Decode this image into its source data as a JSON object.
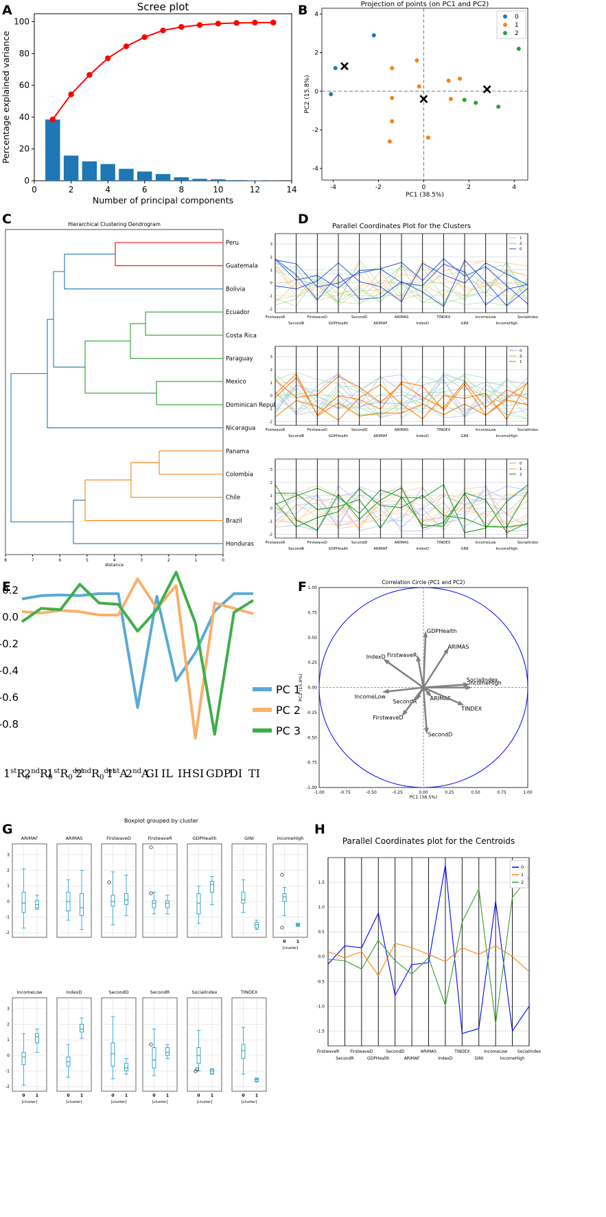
{
  "panel_labels": [
    "A",
    "B",
    "C",
    "D",
    "E",
    "F",
    "G",
    "H"
  ],
  "chart_data": [
    {
      "id": "A",
      "type": "bar+line",
      "title": "Scree plot",
      "xlabel": "Number of principal components",
      "ylabel": "Percentage explained variance",
      "x": [
        1,
        2,
        3,
        4,
        5,
        6,
        7,
        8,
        9,
        10,
        11,
        12,
        13
      ],
      "bar_values": [
        38.5,
        15.8,
        12.2,
        10.5,
        7.5,
        5.8,
        4.2,
        2.2,
        1.2,
        0.9,
        0.4,
        0.2,
        0.1
      ],
      "cumulative": [
        38.5,
        54.3,
        66.5,
        77.0,
        84.5,
        90.3,
        94.5,
        96.7,
        97.9,
        98.8,
        99.2,
        99.4,
        99.5
      ],
      "xticks": [
        "0",
        "2",
        "4",
        "6",
        "8",
        "10",
        "12",
        "14"
      ],
      "yticks": [
        "0",
        "20",
        "40",
        "60",
        "80",
        "100"
      ],
      "xlim": [
        0,
        14
      ],
      "ylim": [
        0,
        105
      ],
      "bar_color": "#1f77b4",
      "line_color": "#ff0000"
    },
    {
      "id": "B",
      "type": "scatter",
      "title": "Projection of points (on PC1 and PC2)",
      "xlabel": "PC1 (38.5%)",
      "ylabel": "PC2 (15.8%)",
      "xlim": [
        -4.5,
        4.6
      ],
      "ylim": [
        -4.6,
        4.3
      ],
      "xticks": [
        "-4",
        "-2",
        "0",
        "2",
        "4"
      ],
      "yticks": [
        "-4",
        "-2",
        "0",
        "2",
        "4"
      ],
      "legend": [
        "0",
        "1",
        "2"
      ],
      "series": [
        {
          "name": "0",
          "color": "#1f77b4",
          "points": [
            [
              -3.9,
              1.2
            ],
            [
              -2.2,
              2.9
            ],
            [
              -4.1,
              -0.15
            ]
          ]
        },
        {
          "name": "1",
          "color": "#ff7f0e",
          "points": [
            [
              -1.4,
              1.2
            ],
            [
              -0.3,
              1.6
            ],
            [
              -0.2,
              0.25
            ],
            [
              -1.4,
              -0.35
            ],
            [
              -1.4,
              -1.55
            ],
            [
              -1.5,
              -2.6
            ],
            [
              0.2,
              -2.4
            ],
            [
              1.1,
              0.55
            ],
            [
              1.2,
              -0.4
            ],
            [
              1.6,
              0.65
            ]
          ]
        },
        {
          "name": "2",
          "color": "#2ca02c",
          "points": [
            [
              1.8,
              -0.45
            ],
            [
              2.3,
              -0.6
            ],
            [
              3.3,
              -0.8
            ],
            [
              4.2,
              2.2
            ]
          ]
        }
      ],
      "centroids": [
        [
          -3.5,
          1.3
        ],
        [
          0.0,
          -0.4
        ],
        [
          2.8,
          0.1
        ]
      ]
    },
    {
      "id": "C",
      "type": "dendrogram",
      "title": "Hierarchical Clustering Dendrogram",
      "xlabel": "distance",
      "xticks": [
        "8",
        "7",
        "6",
        "5",
        "4",
        "3",
        "2",
        "1",
        "0"
      ],
      "leaves": [
        "Peru",
        "Guatemala",
        "Bolivia",
        "Ecuador",
        "Costa Rica",
        "Paraguay",
        "Mexico",
        "Dominican Repub",
        "Nicaragua",
        "Panama",
        "Colombia",
        "Chile",
        "Brazil",
        "Honduras"
      ],
      "merges": [
        {
          "a": 0,
          "b": 1,
          "h": 3.9,
          "color": "#ff0000"
        },
        {
          "a": 3,
          "b": 4,
          "h": 2.9,
          "color": "#2ca02c"
        },
        {
          "a": 6,
          "b": 7,
          "h": 2.5,
          "color": "#2ca02c"
        },
        {
          "a": 9,
          "b": 10,
          "h": 2.5,
          "color": "#ff7f0e"
        }
      ]
    },
    {
      "id": "D",
      "type": "parallel_coordinates",
      "title": "Parallel Coordinates Plot for the Clusters",
      "axes": [
        "FirstwaveR",
        "SecondR",
        "FirstwaveD",
        "GDPHealth",
        "SecondD",
        "ARIMAF",
        "ARIMAS",
        "IndexD",
        "TINDEX",
        "GINI",
        "IncomeLow",
        "IncomeHigh",
        "SocialIndex"
      ],
      "yticks": [
        "3",
        "2",
        "1",
        "0",
        "-1",
        "-2"
      ],
      "subplots": [
        {
          "legend": [
            "1",
            "2",
            "0"
          ],
          "highlight": "0",
          "highlight_color": "#4169e1"
        },
        {
          "legend": [
            "0",
            "2",
            "1"
          ],
          "highlight": "1",
          "highlight_color": "#ff7f0e"
        },
        {
          "legend": [
            "0",
            "1",
            "2"
          ],
          "highlight": "2",
          "highlight_color": "#2ca02c"
        }
      ]
    },
    {
      "id": "E",
      "type": "line",
      "categories": [
        "1stR0",
        "2ndR0",
        "1stR0det",
        "2ndR0det",
        "1stA",
        "2ndA",
        "GI",
        "IL",
        "IH",
        "SI",
        "GDP",
        "DI",
        "TI"
      ],
      "yticks": [
        "0.2",
        "0.0",
        "-0.2",
        "-0.4",
        "-0.6",
        "-0.8"
      ],
      "ylim": [
        -0.95,
        0.3
      ],
      "series": [
        {
          "name": "PC 1",
          "color": "#5aa9d6",
          "values": [
            0.13,
            0.155,
            0.16,
            0.155,
            0.17,
            0.17,
            -0.68,
            0.15,
            -0.48,
            -0.27,
            0.04,
            0.17,
            0.17
          ]
        },
        {
          "name": "PC 2",
          "color": "#f9b06b",
          "values": [
            0.035,
            0.025,
            0.045,
            0.035,
            0.01,
            0.01,
            0.28,
            0.06,
            0.23,
            -0.91,
            0.1,
            0.06,
            0.02
          ]
        },
        {
          "name": "PC 3",
          "color": "#3fae49",
          "values": [
            -0.04,
            0.06,
            0.05,
            0.24,
            0.1,
            0.09,
            -0.11,
            0.05,
            0.33,
            -0.05,
            -0.88,
            0.03,
            0.12
          ]
        }
      ],
      "tick_labels": [
        "1stR0",
        "2ndR0",
        "1stR0det",
        "2ndR0det",
        "1stA",
        "2ndA",
        "GI",
        "IL",
        "IH",
        "SI",
        "GDP",
        "DI",
        "TI"
      ]
    },
    {
      "id": "F",
      "type": "correlation_circle",
      "title": "Correlation Circle (PC1 and PC2)",
      "xlabel": "PC1 (38.5%)",
      "ylabel": "PC2 (15.8%)",
      "ticks": [
        "-1.00",
        "-0.75",
        "-0.50",
        "-0.25",
        "0.00",
        "0.25",
        "0.50",
        "0.75",
        "1.00"
      ],
      "vectors": [
        {
          "label": "GDPHealth",
          "x": 0.02,
          "y": 0.52
        },
        {
          "label": "ARIMAS",
          "x": 0.22,
          "y": 0.36
        },
        {
          "label": "FirstwaveR",
          "x": -0.05,
          "y": 0.28
        },
        {
          "label": "IndexD",
          "x": -0.35,
          "y": 0.26
        },
        {
          "label": "SocialIndex",
          "x": 0.4,
          "y": 0.03
        },
        {
          "label": "IncomeHigh",
          "x": 0.42,
          "y": 0.0
        },
        {
          "label": "IncomeLow",
          "x": -0.35,
          "y": -0.04
        },
        {
          "label": "ARIMAF",
          "x": 0.05,
          "y": -0.06
        },
        {
          "label": "SecondR",
          "x": -0.05,
          "y": -0.09
        },
        {
          "label": "TINDEX",
          "x": 0.35,
          "y": -0.16
        },
        {
          "label": "FirstwaveD",
          "x": -0.18,
          "y": -0.25
        },
        {
          "label": "SecondD",
          "x": 0.03,
          "y": -0.42
        }
      ]
    },
    {
      "id": "G",
      "type": "boxplot",
      "title": "Boxplot grouped by cluster",
      "xlabel": "[cluster]",
      "groups": [
        "0",
        "1"
      ],
      "yticks": [
        "3",
        "2",
        "1",
        "0",
        "-1",
        "-2"
      ],
      "panels": [
        {
          "name": "ARIMAF",
          "g0": {
            "min": -1.7,
            "q1": -0.7,
            "med": -0.1,
            "q3": 0.6,
            "max": 2.1
          },
          "g1": {
            "min": -0.5,
            "q1": -0.4,
            "med": -0.2,
            "q3": 0.05,
            "max": 0.4
          }
        },
        {
          "name": "ARIMAS",
          "g0": {
            "min": -1.2,
            "q1": -0.6,
            "med": 0.0,
            "q3": 0.6,
            "max": 1.4
          },
          "g1": {
            "min": -1.8,
            "q1": -0.9,
            "med": -0.4,
            "q3": 0.5,
            "max": 2.0
          }
        },
        {
          "name": "FirstwaveD",
          "g0": {
            "min": -1.5,
            "q1": -0.3,
            "med": 0.0,
            "q3": 0.4,
            "max": 1.9
          },
          "g1": {
            "min": -0.9,
            "q1": -0.2,
            "med": 0.1,
            "q3": 0.5,
            "max": 1.7
          }
        },
        {
          "name": "FirstwaveR",
          "g0": {
            "min": -0.8,
            "q1": -0.4,
            "med": -0.1,
            "q3": 0.05,
            "max": 0.6
          },
          "g1": {
            "min": -0.8,
            "q1": -0.4,
            "med": -0.1,
            "q3": 0.05,
            "max": 0.4
          }
        },
        {
          "name": "GDPHealth",
          "g0": {
            "min": -1.4,
            "q1": -0.8,
            "med": -0.1,
            "q3": 0.5,
            "max": 1.0
          },
          "g1": {
            "min": -0.2,
            "q1": 0.6,
            "med": 1.1,
            "q3": 1.3,
            "max": 1.6
          }
        },
        {
          "name": "GINI",
          "g0": {
            "min": -0.7,
            "q1": -0.1,
            "med": 0.1,
            "q3": 0.6,
            "max": 1.4
          },
          "g1": {
            "min": -1.8,
            "q1": -1.7,
            "med": -1.5,
            "q3": -1.35,
            "max": -1.2
          }
        },
        {
          "name": "IncomeHigh",
          "g0": {
            "min": -0.9,
            "q1": 0.0,
            "med": 0.3,
            "q3": 0.5,
            "max": 0.9
          },
          "g1": {
            "min": -1.6,
            "q1": -1.55,
            "med": -1.5,
            "q3": -1.45,
            "max": -1.4
          }
        },
        {
          "name": "IncomeLow",
          "g0": {
            "min": -1.9,
            "q1": -0.6,
            "med": -0.1,
            "q3": 0.2,
            "max": 1.4
          },
          "g1": {
            "min": 0.2,
            "q1": 0.8,
            "med": 1.2,
            "q3": 1.4,
            "max": 1.7
          }
        },
        {
          "name": "IndexD",
          "g0": {
            "min": -1.4,
            "q1": -0.7,
            "med": -0.4,
            "q3": -0.1,
            "max": 0.7
          },
          "g1": {
            "min": 1.1,
            "q1": 1.5,
            "med": 1.7,
            "q3": 2.0,
            "max": 2.4
          }
        },
        {
          "name": "SecondD",
          "g0": {
            "min": -1.5,
            "q1": -0.7,
            "med": 0.1,
            "q3": 0.8,
            "max": 2.5
          },
          "g1": {
            "min": -1.2,
            "q1": -1.0,
            "med": -0.8,
            "q3": -0.5,
            "max": -0.2
          }
        },
        {
          "name": "SecondR",
          "g0": {
            "min": -1.3,
            "q1": -0.8,
            "med": -0.3,
            "q3": 0.5,
            "max": 1.7
          },
          "g1": {
            "min": -0.2,
            "q1": 0.0,
            "med": 0.2,
            "q3": 0.5,
            "max": 0.7
          }
        },
        {
          "name": "SocialIndex",
          "g0": {
            "min": -1.0,
            "q1": -0.5,
            "med": 0.0,
            "q3": 0.5,
            "max": 1.6
          },
          "g1": {
            "min": -1.2,
            "q1": -1.15,
            "med": -1.0,
            "q3": -0.9,
            "max": -0.85
          }
        },
        {
          "name": "TINDEX",
          "g0": {
            "min": -1.2,
            "q1": -0.2,
            "med": 0.3,
            "q3": 0.7,
            "max": 1.8
          },
          "g1": {
            "min": -1.7,
            "q1": -1.65,
            "med": -1.55,
            "q3": -1.5,
            "max": -1.45
          }
        }
      ]
    },
    {
      "id": "H",
      "type": "parallel_coordinates",
      "title": "Parallel Coordinates plot for the Centroids",
      "axes": [
        "FirstwaveR",
        "SecondR",
        "FirstwaveD",
        "GDPHealth",
        "SecondD",
        "ARIMAF",
        "ARIMAS",
        "IndexD",
        "TINDEX",
        "GINI",
        "IncomeLow",
        "IncomeHigh",
        "SocialIndex"
      ],
      "yticks": [
        "1.5",
        "1.0",
        "0.5",
        "0.0",
        "-0.5",
        "-1.0",
        "-1.5"
      ],
      "ylim": [
        -1.8,
        2.0
      ],
      "series": [
        {
          "name": "0",
          "color": "#0000ff",
          "values": [
            -0.15,
            0.22,
            0.18,
            0.88,
            -0.78,
            -0.16,
            -0.12,
            1.85,
            -1.55,
            -1.45,
            1.12,
            -1.5,
            -1.0
          ]
        },
        {
          "name": "1",
          "color": "#ff7f00",
          "values": [
            0.1,
            -0.02,
            0.1,
            -0.38,
            0.27,
            0.18,
            0.05,
            -0.1,
            0.18,
            0.05,
            0.22,
            0.0,
            -0.3
          ]
        },
        {
          "name": "2",
          "color": "#2ca02c",
          "values": [
            -0.05,
            -0.08,
            -0.25,
            0.33,
            -0.08,
            -0.35,
            -0.02,
            -0.98,
            0.7,
            1.37,
            -1.35,
            1.2,
            1.6
          ]
        }
      ]
    }
  ]
}
